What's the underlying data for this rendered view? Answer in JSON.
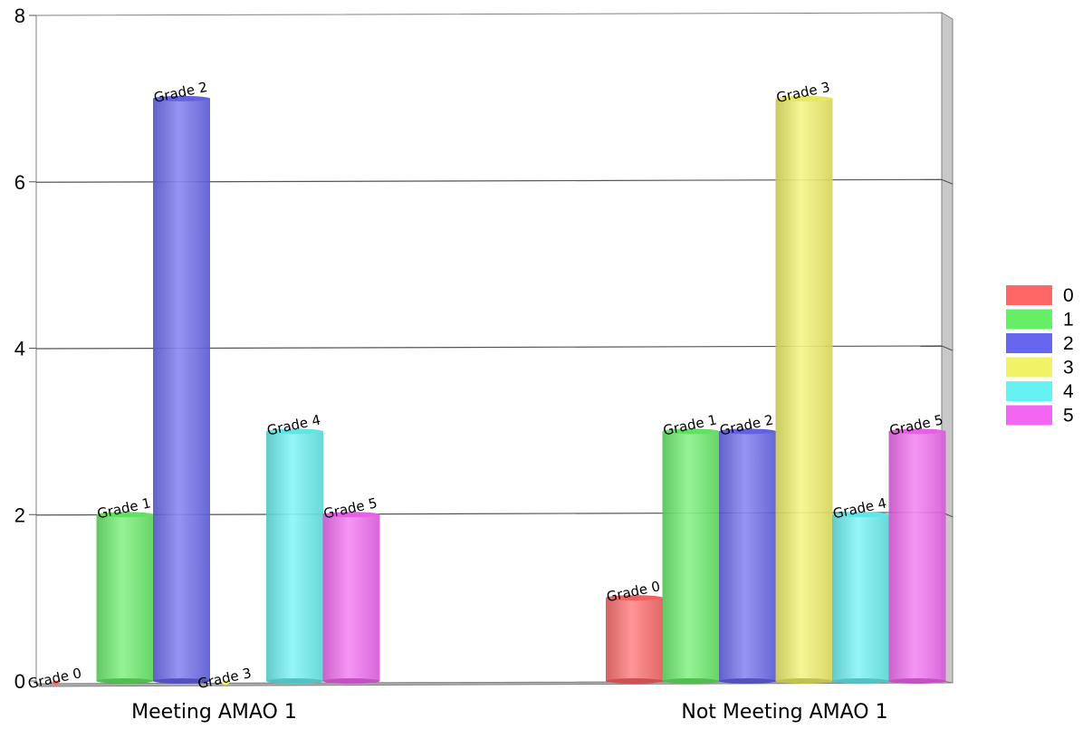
{
  "chart_data": {
    "type": "bar",
    "title": "",
    "xlabel": "",
    "ylabel": "",
    "ylim": [
      0,
      8
    ],
    "yticks": [
      0,
      2,
      4,
      6,
      8
    ],
    "grid": true,
    "legend_position": "right",
    "categories": [
      "Meeting AMAO 1",
      "Not Meeting AMAO 1"
    ],
    "series": [
      {
        "name": "0",
        "label": "Grade 0",
        "color": "#ff6666",
        "values": [
          0,
          1
        ]
      },
      {
        "name": "1",
        "label": "Grade 1",
        "color": "#66ee66",
        "values": [
          2,
          3
        ]
      },
      {
        "name": "2",
        "label": "Grade 2",
        "color": "#6666ee",
        "values": [
          7,
          3
        ]
      },
      {
        "name": "3",
        "label": "Grade 3",
        "color": "#f2f266",
        "values": [
          0,
          7
        ]
      },
      {
        "name": "4",
        "label": "Grade 4",
        "color": "#66f2f2",
        "values": [
          3,
          2
        ]
      },
      {
        "name": "5",
        "label": "Grade 5",
        "color": "#f266f2",
        "values": [
          2,
          3
        ]
      }
    ]
  }
}
